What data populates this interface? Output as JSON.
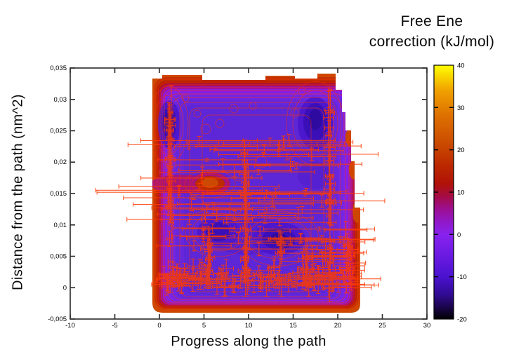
{
  "figure": {
    "background": "#ffffff",
    "title_line1": "Free Ene",
    "title_line2": "correction (kJ/mol)",
    "xlabel": "Progress along the path",
    "ylabel": "Distance from the path (nm^2)"
  },
  "chart_data": {
    "type": "heatmap",
    "title": "Free Ene correction (kJ/mol)",
    "xlabel": "Progress along the path",
    "ylabel": "Distance from the path (nm^2)",
    "x_range": [
      -10,
      30
    ],
    "y_range": [
      -0.005,
      0.035
    ],
    "grid": false,
    "legend_position": "colorbar-right",
    "x_ticks": {
      "values": [
        -10,
        -5,
        0,
        5,
        10,
        15,
        20,
        25,
        30
      ],
      "labels": [
        "-10",
        "-5",
        "0",
        "5",
        "10",
        "15",
        "20",
        "25",
        "30"
      ]
    },
    "y_ticks": {
      "values": [
        0.035,
        0.03,
        0.025,
        0.02,
        0.015,
        0.01,
        0.005,
        0,
        -0.005
      ],
      "labels": [
        "0,035",
        "0,03",
        "0,025",
        "0,02",
        "0,015",
        "0,01",
        "0,005",
        "0",
        "-0,005"
      ]
    },
    "colorbar": {
      "label": "Free Ene correction (kJ/mol)",
      "range": [
        -20,
        40
      ],
      "ticks": {
        "values": [
          40,
          30,
          20,
          10,
          0,
          -10,
          -20
        ],
        "labels": [
          "40",
          "30",
          "20",
          "10",
          "0",
          "-10",
          "-20"
        ]
      },
      "stops": [
        {
          "value": 40,
          "color": "#ffff00"
        },
        {
          "value": 34,
          "color": "#f0a000"
        },
        {
          "value": 28,
          "color": "#dd7000"
        },
        {
          "value": 22,
          "color": "#cc4e00"
        },
        {
          "value": 16,
          "color": "#bb2600"
        },
        {
          "value": 12,
          "color": "#b01208"
        },
        {
          "value": 9,
          "color": "#a50b45"
        },
        {
          "value": 6,
          "color": "#9c0f92"
        },
        {
          "value": 3,
          "color": "#9118c8"
        },
        {
          "value": 0,
          "color": "#8822ee"
        },
        {
          "value": -5,
          "color": "#6a1ae2"
        },
        {
          "value": -10,
          "color": "#4b12cf"
        },
        {
          "value": -14,
          "color": "#320b96"
        },
        {
          "value": -17,
          "color": "#1c0550"
        },
        {
          "value": -20,
          "color": "#000000"
        }
      ]
    },
    "surface": {
      "x_extent": [
        -0.85,
        22.6
      ],
      "y_extent": [
        -0.004,
        0.0327
      ],
      "rim_value_estimate": [
        10,
        20
      ],
      "interior_value_estimate": [
        -5,
        0
      ],
      "minima": [
        {
          "x": 1.1,
          "y": 0.026,
          "approx_value": -8
        },
        {
          "x": 17.5,
          "y": 0.0262,
          "approx_value": -8
        },
        {
          "x": 6.6,
          "y": 0.0089,
          "approx_value": -7
        },
        {
          "x": 13.4,
          "y": 0.0078,
          "approx_value": -9
        }
      ],
      "local_maximum": {
        "x": 5.7,
        "y": 0.0166,
        "approx_value": 15
      },
      "blobs": [
        {
          "x": 1.1,
          "y": 0.026,
          "rx": 1.26,
          "ry": 0.0038,
          "color": "#4c17cd"
        },
        {
          "x": 1.1,
          "y": 0.0262,
          "rx": 0.79,
          "ry": 0.0027,
          "color": "#3a0fb8"
        },
        {
          "x": 1.1,
          "y": 0.0266,
          "rx": 0.47,
          "ry": 0.0015,
          "color": "#2e0aa0"
        },
        {
          "x": 17.48,
          "y": 0.0262,
          "rx": 1.97,
          "ry": 0.0042,
          "color": "#4c17cd"
        },
        {
          "x": 17.48,
          "y": 0.0264,
          "rx": 1.34,
          "ry": 0.003,
          "color": "#3a0fb8"
        },
        {
          "x": 17.48,
          "y": 0.0268,
          "rx": 0.71,
          "ry": 0.0017,
          "color": "#2e0aa0"
        },
        {
          "x": 10.08,
          "y": 0.0083,
          "rx": 4.88,
          "ry": 0.003,
          "color": "#5520cf"
        },
        {
          "x": 6.61,
          "y": 0.0089,
          "rx": 2.36,
          "ry": 0.0024,
          "color": "#4c17cd"
        },
        {
          "x": 6.61,
          "y": 0.0089,
          "rx": 1.42,
          "ry": 0.0015,
          "color": "#3a0fb8"
        },
        {
          "x": 13.39,
          "y": 0.0078,
          "rx": 2.99,
          "ry": 0.0026,
          "color": "#4c17cd"
        },
        {
          "x": 13.39,
          "y": 0.0078,
          "rx": 1.89,
          "ry": 0.0017,
          "color": "#3a0fb8"
        },
        {
          "x": 13.39,
          "y": 0.0078,
          "rx": 0.94,
          "ry": 0.0009,
          "color": "#2e0aa0"
        },
        {
          "x": 17.4,
          "y": 0.0179,
          "rx": 1.89,
          "ry": 0.0022,
          "color": "#5520cf"
        },
        {
          "x": 2.44,
          "y": 0.0165,
          "rx": 3.46,
          "ry": 0.0015,
          "color": "#a2137c"
        },
        {
          "x": 5.67,
          "y": 0.0166,
          "rx": 2.28,
          "ry": 0.0018,
          "color": "#a2137c"
        },
        {
          "x": 5.67,
          "y": 0.0166,
          "rx": 1.65,
          "ry": 0.0012,
          "color": "#bb2a00"
        },
        {
          "x": 5.67,
          "y": 0.0167,
          "rx": 0.94,
          "ry": 0.0008,
          "color": "#cc4a00"
        }
      ]
    },
    "error_bars": {
      "seed": 7,
      "color": "#fb3a00",
      "clusters": [
        {
          "n": 30,
          "x": [
            2,
            19.5
          ],
          "y": [
            0.015,
            0.0235
          ],
          "xerr": [
            3.5,
            9.5
          ],
          "yerr": [
            0.0002,
            0.001
          ]
        },
        {
          "n": 22,
          "x": [
            2,
            19.5
          ],
          "y": [
            0.0095,
            0.015
          ],
          "xerr": [
            2.5,
            8
          ],
          "yerr": [
            0.0002,
            0.001
          ]
        },
        {
          "n": 18,
          "x": [
            2,
            19.5
          ],
          "y": [
            0.004,
            0.0095
          ],
          "xerr": [
            2,
            7
          ],
          "yerr": [
            0.0003,
            0.0012
          ]
        },
        {
          "n": 40,
          "x": [
            0.5,
            21.5
          ],
          "y": [
            -0.0002,
            0.0028
          ],
          "xerr": [
            0.5,
            3.5
          ],
          "yerr": [
            0.0003,
            0.0015
          ]
        },
        {
          "n": 20,
          "x": [
            0.8,
            3
          ],
          "y": [
            -0.0005,
            0.0025
          ],
          "xerr": [
            0.3,
            2
          ],
          "yerr": [
            0.0003,
            0.0015
          ]
        },
        {
          "n": 16,
          "x": [
            16,
            22
          ],
          "y": [
            0,
            0.003
          ],
          "xerr": [
            0.5,
            3
          ],
          "yerr": [
            0.0003,
            0.0012
          ]
        },
        {
          "n": 10,
          "x": [
            19,
            21.5
          ],
          "y": [
            0.003,
            0.0095
          ],
          "xerr": [
            1,
            4
          ],
          "yerr": [
            0.0004,
            0.0015
          ]
        },
        {
          "n": 26,
          "x": [
            0.95,
            1.35
          ],
          "y": [
            0.002,
            0.028
          ],
          "xerr": [
            0.15,
            0.6
          ],
          "yerr": [
            0.001,
            0.0045
          ]
        },
        {
          "n": 22,
          "x": [
            9.5,
            9.95
          ],
          "y": [
            0.0005,
            0.022
          ],
          "xerr": [
            0.15,
            0.6
          ],
          "yerr": [
            0.001,
            0.004
          ]
        },
        {
          "n": 20,
          "x": [
            18.9,
            19.35
          ],
          "y": [
            0.002,
            0.0285
          ],
          "xerr": [
            0.15,
            0.6
          ],
          "yerr": [
            0.001,
            0.0045
          ]
        },
        {
          "n": 8,
          "x": [
            5.4,
            5.8
          ],
          "y": [
            0.002,
            0.011
          ],
          "xerr": [
            0.15,
            0.5
          ],
          "yerr": [
            0.001,
            0.003
          ]
        },
        {
          "n": 8,
          "x": [
            21,
            21.5
          ],
          "y": [
            0,
            0.008
          ],
          "xerr": [
            0.15,
            0.5
          ],
          "yerr": [
            0.0008,
            0.0025
          ]
        },
        {
          "n": 44,
          "x": [
            0.3,
            21.8
          ],
          "y": [
            0,
            0.0035
          ],
          "xerr": [
            0.2,
            0.9
          ],
          "yerr": [
            0.0005,
            0.0018
          ]
        },
        {
          "n": 12,
          "x": [
            16,
            19
          ],
          "y": [
            0.001,
            0.006
          ],
          "xerr": [
            0.3,
            1
          ],
          "yerr": [
            0.001,
            0.003
          ]
        },
        {
          "n": 6,
          "x": [
            13.3,
            13.8
          ],
          "y": [
            0.005,
            0.01
          ],
          "xerr": [
            0.2,
            0.5
          ],
          "yerr": [
            0.001,
            0.002
          ]
        }
      ]
    }
  }
}
